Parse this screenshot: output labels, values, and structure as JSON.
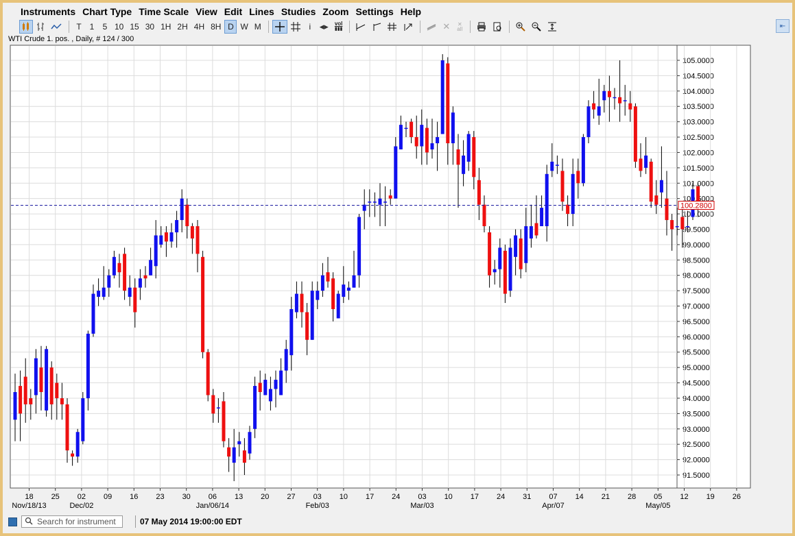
{
  "menu": [
    "Instruments",
    "Chart Type",
    "Time Scale",
    "View",
    "Edit",
    "Lines",
    "Studies",
    "Zoom",
    "Settings",
    "Help"
  ],
  "toolbar": {
    "timeframes": [
      "T",
      "1",
      "5",
      "10",
      "15",
      "30",
      "1H",
      "2H",
      "4H",
      "8H",
      "D",
      "W",
      "M"
    ],
    "active_timeframe": "D",
    "vol_label": "vol",
    "info_label": "i",
    "all_label": "all"
  },
  "chart_title": "WTI Crude 1. pos. , Daily, # 124 / 300",
  "colors": {
    "up": "#1010ee",
    "down": "#ee1010",
    "wick": "#000000",
    "current_price": "#1a1aa0",
    "grid": "#dcdcdc"
  },
  "chart_data": {
    "type": "candlestick",
    "ylim": [
      91.2,
      105.5
    ],
    "y_ticks": [
      "105.0000",
      "104.5000",
      "104.0000",
      "103.5000",
      "103.0000",
      "102.5000",
      "102.0000",
      "101.5000",
      "101.0000",
      "100.5000",
      "100.0000",
      "99.5000",
      "99.0000",
      "98.5000",
      "98.0000",
      "97.5000",
      "97.0000",
      "96.5000",
      "96.0000",
      "95.5000",
      "95.0000",
      "94.5000",
      "94.0000",
      "93.5000",
      "93.0000",
      "92.5000",
      "92.0000",
      "91.5000"
    ],
    "x_ticks": [
      "18",
      "25",
      "02",
      "09",
      "16",
      "23",
      "30",
      "06",
      "13",
      "20",
      "27",
      "03",
      "10",
      "17",
      "24",
      "03",
      "10",
      "17",
      "24",
      "31",
      "07",
      "14",
      "21",
      "28",
      "05",
      "12",
      "19",
      "26"
    ],
    "x_month_labels": [
      "Nov/18/13",
      "Dec/02",
      "Jan/06/14",
      "Feb/03",
      "Mar/03",
      "Apr/07",
      "May/05"
    ],
    "current_price": 100.28,
    "current_price_label": "100.2800",
    "candles": [
      [
        93.3,
        94.2,
        92.6,
        94.8
      ],
      [
        94.4,
        93.5,
        92.6,
        94.9
      ],
      [
        94.7,
        93.8,
        93.2,
        95.3
      ],
      [
        94.0,
        93.8,
        93.3,
        94.3
      ],
      [
        94.1,
        95.3,
        93.5,
        95.6
      ],
      [
        95.0,
        94.2,
        93.6,
        95.7
      ],
      [
        93.6,
        95.6,
        93.4,
        95.7
      ],
      [
        95.0,
        93.8,
        93.3,
        95.2
      ],
      [
        94.5,
        94.0,
        93.3,
        94.8
      ],
      [
        94.0,
        93.8,
        93.3,
        94.5
      ],
      [
        93.8,
        92.3,
        91.9,
        94.0
      ],
      [
        92.2,
        92.1,
        91.8,
        92.3
      ],
      [
        92.1,
        92.9,
        91.9,
        93.0
      ],
      [
        92.6,
        94.0,
        92.5,
        94.2
      ],
      [
        94.0,
        96.1,
        93.6,
        96.2
      ],
      [
        96.1,
        97.4,
        96.0,
        97.7
      ],
      [
        97.3,
        97.5,
        97.0,
        97.9
      ],
      [
        97.3,
        97.6,
        97.2,
        98.3
      ],
      [
        97.6,
        98.0,
        97.3,
        98.2
      ],
      [
        98.0,
        98.6,
        97.9,
        98.8
      ],
      [
        98.4,
        98.1,
        97.6,
        98.7
      ],
      [
        98.7,
        97.5,
        97.2,
        98.9
      ],
      [
        97.3,
        97.6,
        97.0,
        98.0
      ],
      [
        97.6,
        96.8,
        96.3,
        97.9
      ],
      [
        97.6,
        97.9,
        97.2,
        98.2
      ],
      [
        98.0,
        97.9,
        97.6,
        98.3
      ],
      [
        98.0,
        98.5,
        98.0,
        98.9
      ],
      [
        98.3,
        99.3,
        97.9,
        99.8
      ],
      [
        99.0,
        99.3,
        98.9,
        99.6
      ],
      [
        99.4,
        99.1,
        98.6,
        99.6
      ],
      [
        99.1,
        99.4,
        98.9,
        99.7
      ],
      [
        99.4,
        99.8,
        98.9,
        100.1
      ],
      [
        99.8,
        100.5,
        99.4,
        100.8
      ],
      [
        100.3,
        99.6,
        99.2,
        100.5
      ],
      [
        99.6,
        99.2,
        98.7,
        99.7
      ],
      [
        99.6,
        98.7,
        98.1,
        99.8
      ],
      [
        98.6,
        95.5,
        95.3,
        98.8
      ],
      [
        95.5,
        94.1,
        93.9,
        95.6
      ],
      [
        94.1,
        93.5,
        93.2,
        94.3
      ],
      [
        93.7,
        93.7,
        93.2,
        94.0
      ],
      [
        93.9,
        92.6,
        92.4,
        94.2
      ],
      [
        92.4,
        92.1,
        91.6,
        92.7
      ],
      [
        91.9,
        92.4,
        91.3,
        93.0
      ],
      [
        92.5,
        92.6,
        92.1,
        92.9
      ],
      [
        92.3,
        91.9,
        91.5,
        92.7
      ],
      [
        92.2,
        92.9,
        92.0,
        93.1
      ],
      [
        93.0,
        94.4,
        92.7,
        94.7
      ],
      [
        94.5,
        94.2,
        93.6,
        94.9
      ],
      [
        94.1,
        94.6,
        94.1,
        94.8
      ],
      [
        93.9,
        94.3,
        93.6,
        94.7
      ],
      [
        94.3,
        94.6,
        93.7,
        94.9
      ],
      [
        94.1,
        94.9,
        94.1,
        95.3
      ],
      [
        94.9,
        95.6,
        94.5,
        95.9
      ],
      [
        95.4,
        96.9,
        94.9,
        97.3
      ],
      [
        96.8,
        97.4,
        96.6,
        97.8
      ],
      [
        97.4,
        96.8,
        96.3,
        97.8
      ],
      [
        96.8,
        95.9,
        95.4,
        97.1
      ],
      [
        95.9,
        97.5,
        95.9,
        97.8
      ],
      [
        97.2,
        97.5,
        96.9,
        97.8
      ],
      [
        97.5,
        98.0,
        97.3,
        98.4
      ],
      [
        98.1,
        97.8,
        97.6,
        98.6
      ],
      [
        97.9,
        96.9,
        96.5,
        98.1
      ],
      [
        96.6,
        97.4,
        96.6,
        97.5
      ],
      [
        97.3,
        97.7,
        97.1,
        98.3
      ],
      [
        97.5,
        97.6,
        97.2,
        97.8
      ],
      [
        97.6,
        98.0,
        97.6,
        98.8
      ],
      [
        98.0,
        99.9,
        97.6,
        100.0
      ],
      [
        100.1,
        100.3,
        99.5,
        100.8
      ],
      [
        100.4,
        100.4,
        99.9,
        100.8
      ],
      [
        100.4,
        100.4,
        99.9,
        100.7
      ],
      [
        100.3,
        100.5,
        99.6,
        101.0
      ],
      [
        100.4,
        100.4,
        99.6,
        100.9
      ],
      [
        100.6,
        100.5,
        100.3,
        100.8
      ],
      [
        100.5,
        102.2,
        100.5,
        102.5
      ],
      [
        102.1,
        102.9,
        102.1,
        103.2
      ],
      [
        102.8,
        102.8,
        102.5,
        103.0
      ],
      [
        103.0,
        102.5,
        102.3,
        103.1
      ],
      [
        102.5,
        102.2,
        101.8,
        103.2
      ],
      [
        102.2,
        102.9,
        101.6,
        103.4
      ],
      [
        102.8,
        102.0,
        101.6,
        103.1
      ],
      [
        102.1,
        102.3,
        101.8,
        103.1
      ],
      [
        102.3,
        102.5,
        101.4,
        103.0
      ],
      [
        102.6,
        105.0,
        102.6,
        105.2
      ],
      [
        104.9,
        102.3,
        101.6,
        105.1
      ],
      [
        102.3,
        103.3,
        101.6,
        103.5
      ],
      [
        102.1,
        101.6,
        100.2,
        102.6
      ],
      [
        101.3,
        101.9,
        100.9,
        102.4
      ],
      [
        101.7,
        102.6,
        101.4,
        102.7
      ],
      [
        102.5,
        101.2,
        100.8,
        102.7
      ],
      [
        101.1,
        100.3,
        99.8,
        101.5
      ],
      [
        100.3,
        99.6,
        99.4,
        100.6
      ],
      [
        99.4,
        98.0,
        97.6,
        99.6
      ],
      [
        98.1,
        98.2,
        97.7,
        98.5
      ],
      [
        98.2,
        98.9,
        97.6,
        99.2
      ],
      [
        98.8,
        97.4,
        97.1,
        99.0
      ],
      [
        97.5,
        98.9,
        97.3,
        99.2
      ],
      [
        98.6,
        99.3,
        98.0,
        99.5
      ],
      [
        99.2,
        98.2,
        97.9,
        99.5
      ],
      [
        98.4,
        99.6,
        98.1,
        100.2
      ],
      [
        99.2,
        99.6,
        98.9,
        100.3
      ],
      [
        99.7,
        99.3,
        99.2,
        100.6
      ],
      [
        99.6,
        100.2,
        99.6,
        100.6
      ],
      [
        99.6,
        101.3,
        99.1,
        101.6
      ],
      [
        101.4,
        101.7,
        101.2,
        102.3
      ],
      [
        101.6,
        101.6,
        101.3,
        101.9
      ],
      [
        101.4,
        100.4,
        100.1,
        101.8
      ],
      [
        100.3,
        100.0,
        99.6,
        100.6
      ],
      [
        100.0,
        101.3,
        99.6,
        101.8
      ],
      [
        101.4,
        101.0,
        100.5,
        101.8
      ],
      [
        101.0,
        102.5,
        100.9,
        102.6
      ],
      [
        102.5,
        103.5,
        102.3,
        103.7
      ],
      [
        103.6,
        103.4,
        103.1,
        104.0
      ],
      [
        103.2,
        103.5,
        102.9,
        104.4
      ],
      [
        103.7,
        104.0,
        103.3,
        104.2
      ],
      [
        104.0,
        103.8,
        103.0,
        104.5
      ],
      [
        103.8,
        103.8,
        103.4,
        104.1
      ],
      [
        103.8,
        103.6,
        103.0,
        105.0
      ],
      [
        103.7,
        103.7,
        103.2,
        104.2
      ],
      [
        103.6,
        103.4,
        103.0,
        104.0
      ],
      [
        103.5,
        101.7,
        101.5,
        103.6
      ],
      [
        101.8,
        101.4,
        101.2,
        102.3
      ],
      [
        101.5,
        101.9,
        101.3,
        102.5
      ],
      [
        101.7,
        100.4,
        100.2,
        101.8
      ],
      [
        100.6,
        100.3,
        100.0,
        101.1
      ],
      [
        100.7,
        101.1,
        100.2,
        102.2
      ],
      [
        100.5,
        99.8,
        99.3,
        101.4
      ],
      [
        99.8,
        99.5,
        98.8,
        100.0
      ],
      [
        99.6,
        99.6,
        99.3,
        100.2
      ],
      [
        99.9,
        99.5,
        98.9,
        100.4
      ],
      [
        99.6,
        99.6,
        99.4,
        100.1
      ],
      [
        99.9,
        100.8,
        99.8,
        101.0
      ],
      [
        100.9,
        100.3,
        99.9,
        101.0
      ]
    ]
  },
  "status": {
    "search_placeholder": "Search for instrument",
    "datetime": "07 May 2014 19:00:00 EDT"
  }
}
